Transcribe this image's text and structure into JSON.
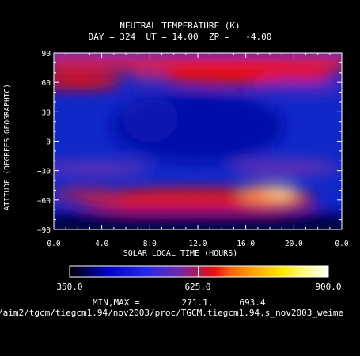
{
  "chart_data": {
    "type": "heatmap",
    "title": "NEUTRAL TEMPERATURE (K)",
    "subtitle": "DAY = 324  UT = 14.00  ZP =   -4.00",
    "xlabel": "SOLAR LOCAL TIME (HOURS)",
    "ylabel": "LATITUDE (DEGREES GEOGRAPHIC)",
    "xlim": [
      0.0,
      24.0
    ],
    "ylim": [
      -90,
      90
    ],
    "x_ticks": [
      "0.0",
      "4.0",
      "8.0",
      "12.0",
      "16.0",
      "20.0",
      "0.0"
    ],
    "y_ticks": [
      "90",
      "60",
      "30",
      "0",
      "−30",
      "−60",
      "−90"
    ],
    "colorbar": {
      "min": 350.0,
      "max": 900.0,
      "tick_labels": [
        "350.0",
        "625.0",
        "900.0"
      ]
    },
    "min_max_label": "MIN,MAX =        271.1,     693.4",
    "field_features": [
      {
        "feature": "warm band",
        "lat": 62,
        "slt_start": 0,
        "slt_end": 24,
        "value": 640
      },
      {
        "feature": "warm maximum",
        "lat": -55,
        "slt": 19.5,
        "value": 693
      }
    ]
  },
  "footer": {
    "file_path": "/aim2/tgcm/tiegcm1.94/nov2003/proc/TGCM.tiegcm1.94.s_nov2003_weime"
  },
  "colors": {
    "background": "#000000",
    "cold": "#0010b0",
    "warm": "#e01008",
    "hot": "#ffd890"
  }
}
